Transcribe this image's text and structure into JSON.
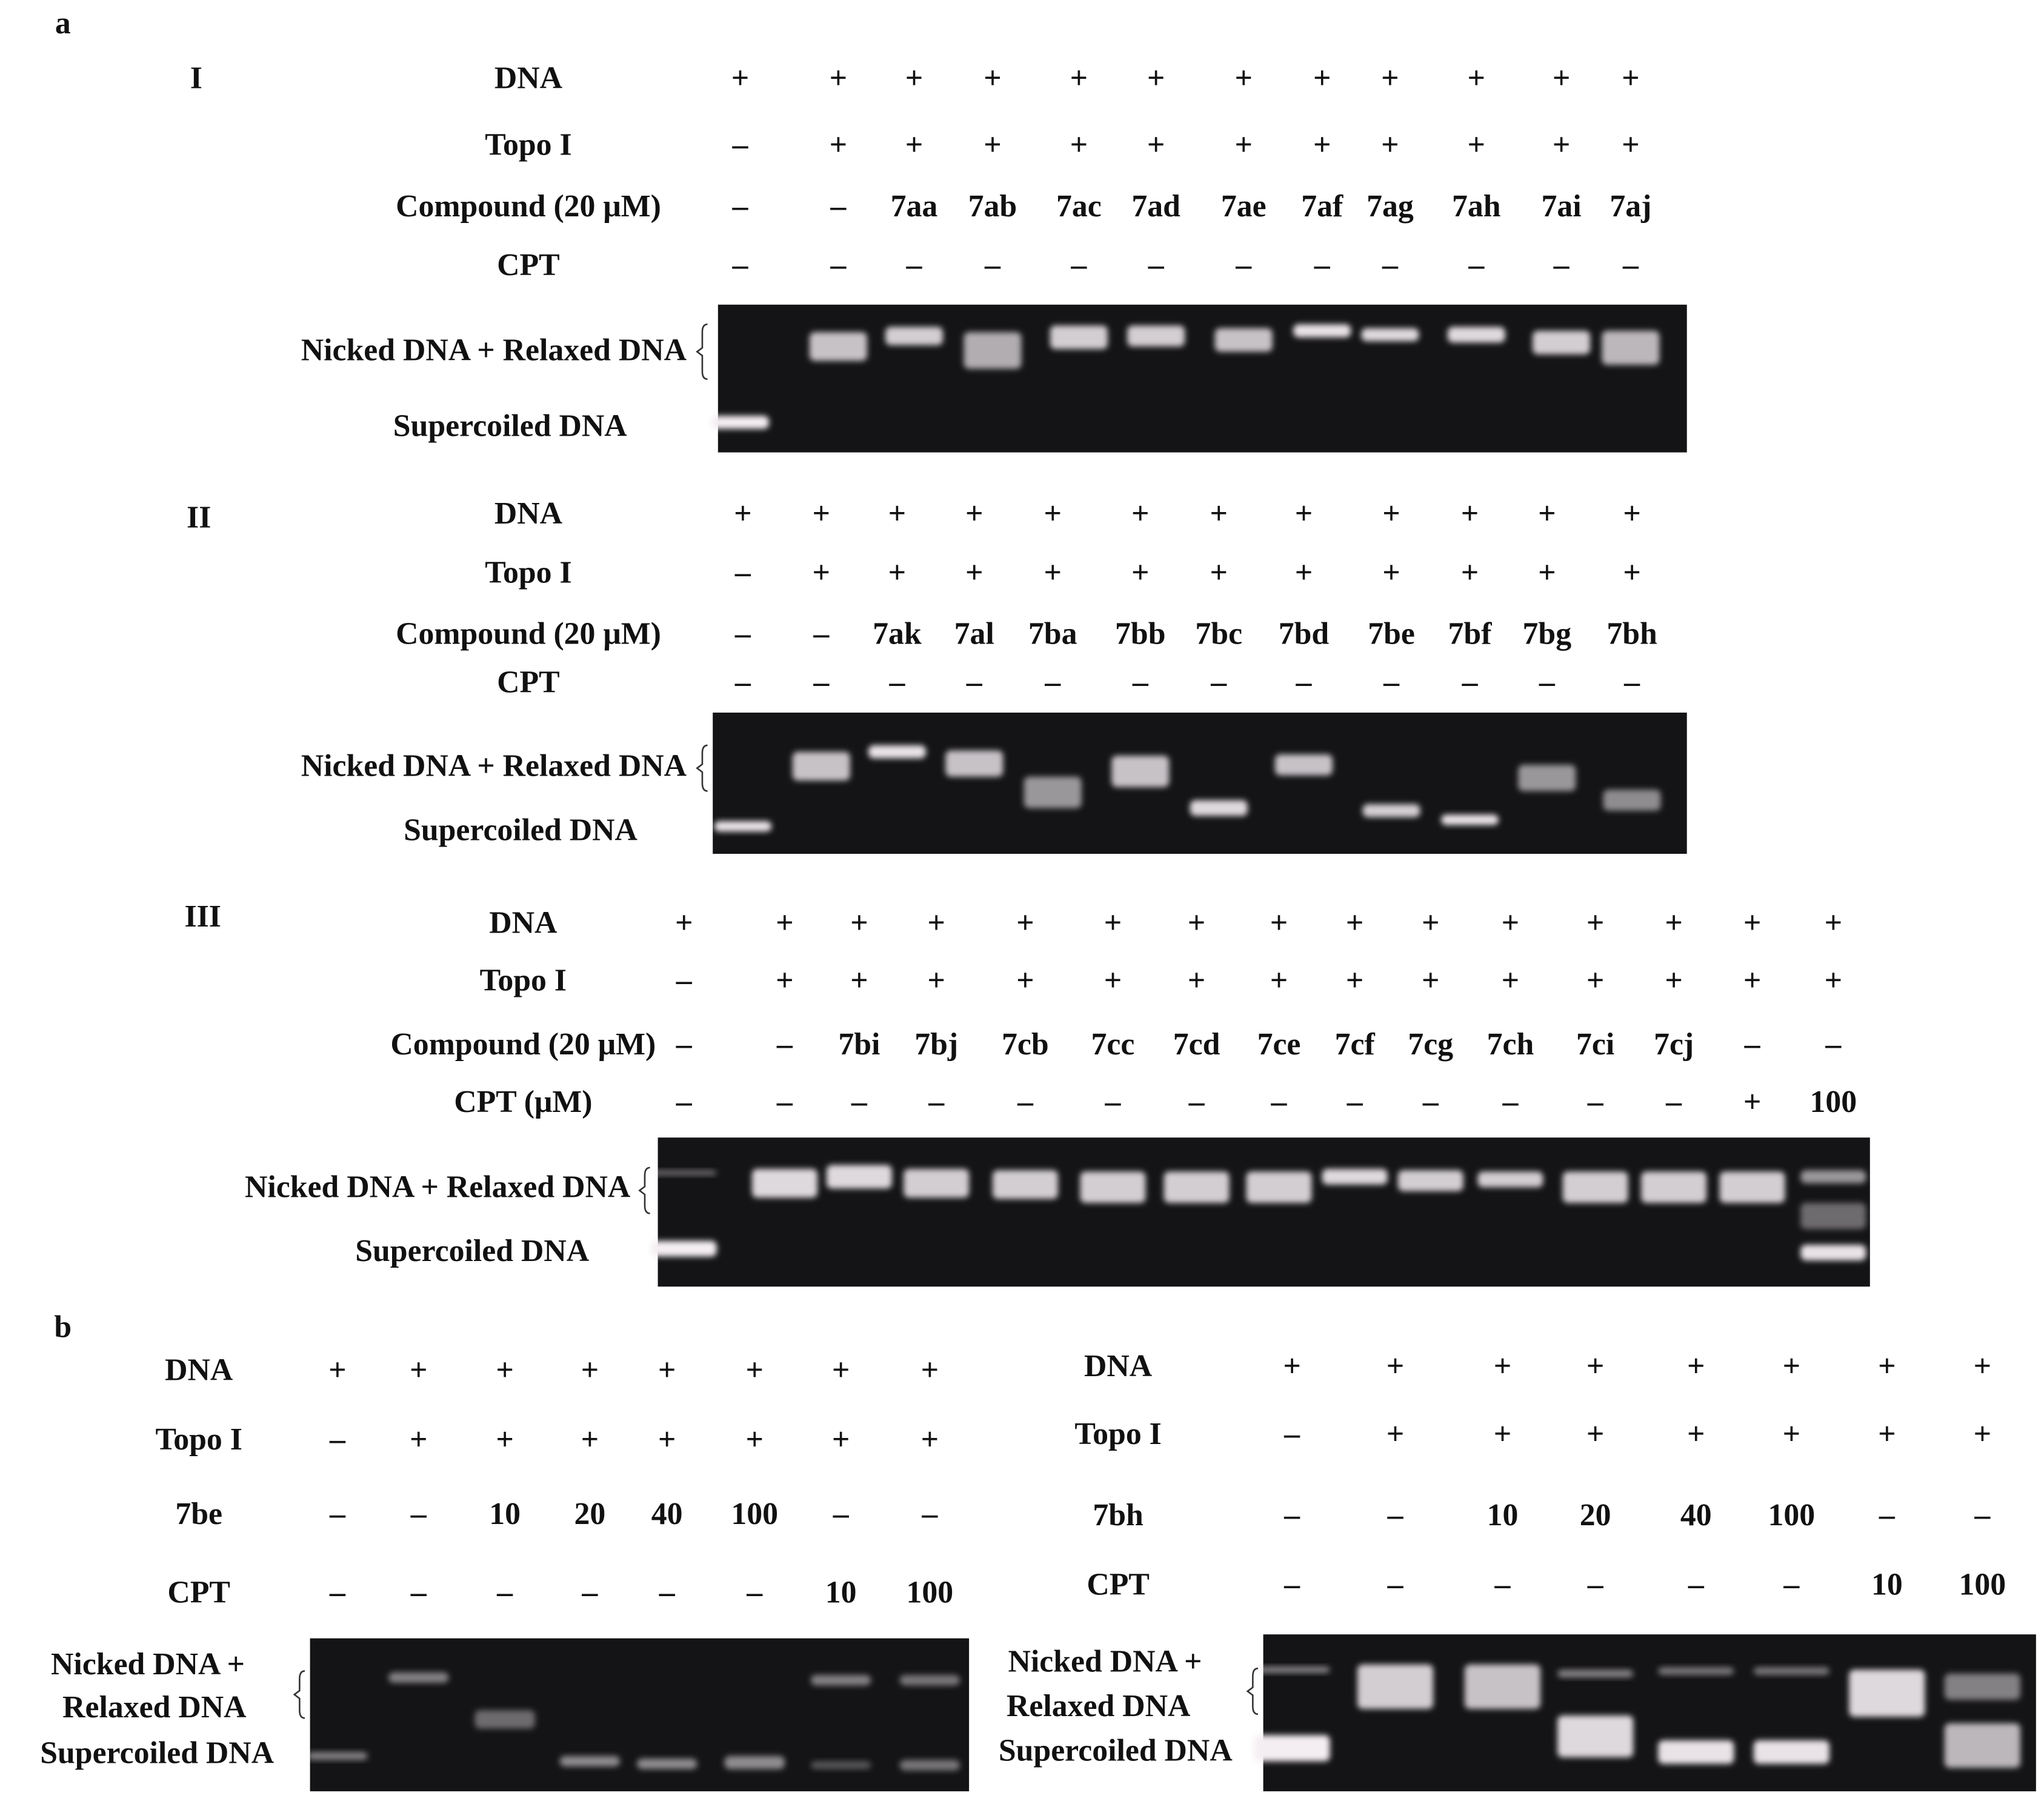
{
  "figure": {
    "panels": [
      {
        "label": "a",
        "sections": [
          {
            "label": "I",
            "rows": [
              {
                "label": "DNA",
                "cells": [
                  "+",
                  "+",
                  "+",
                  "+",
                  "+",
                  "+",
                  "+",
                  "+",
                  "+",
                  "+",
                  "+",
                  "+"
                ]
              },
              {
                "label": "Topo I",
                "cells": [
                  "–",
                  "+",
                  "+",
                  "+",
                  "+",
                  "+",
                  "+",
                  "+",
                  "+",
                  "+",
                  "+",
                  "+"
                ]
              },
              {
                "label": "Compound (20 μM)",
                "cells": [
                  "–",
                  "–",
                  "7aa",
                  "7ab",
                  "7ac",
                  "7ad",
                  "7ae",
                  "7af",
                  "7ag",
                  "7ah",
                  "7ai",
                  "7aj"
                ]
              },
              {
                "label": "CPT",
                "cells": [
                  "–",
                  "–",
                  "–",
                  "–",
                  "–",
                  "–",
                  "–",
                  "–",
                  "–",
                  "–",
                  "–",
                  "–"
                ]
              }
            ],
            "gel_labels": [
              "Nicked DNA + Relaxed DNA",
              "Supercoiled DNA"
            ]
          },
          {
            "label": "II",
            "rows": [
              {
                "label": "DNA",
                "cells": [
                  "+",
                  "+",
                  "+",
                  "+",
                  "+",
                  "+",
                  "+",
                  "+",
                  "+",
                  "+",
                  "+",
                  "+"
                ]
              },
              {
                "label": "Topo I",
                "cells": [
                  "–",
                  "+",
                  "+",
                  "+",
                  "+",
                  "+",
                  "+",
                  "+",
                  "+",
                  "+",
                  "+",
                  "+"
                ]
              },
              {
                "label": "Compound (20 μM)",
                "cells": [
                  "–",
                  "–",
                  "7ak",
                  "7al",
                  "7ba",
                  "7bb",
                  "7bc",
                  "7bd",
                  "7be",
                  "7bf",
                  "7bg",
                  "7bh"
                ]
              },
              {
                "label": "CPT",
                "cells": [
                  "–",
                  "–",
                  "–",
                  "–",
                  "–",
                  "–",
                  "–",
                  "–",
                  "–",
                  "–",
                  "–",
                  "–"
                ]
              }
            ],
            "gel_labels": [
              "Nicked DNA + Relaxed DNA",
              "Supercoiled DNA"
            ]
          },
          {
            "label": "III",
            "rows": [
              {
                "label": "DNA",
                "cells": [
                  "+",
                  "+",
                  "+",
                  "+",
                  "+",
                  "+",
                  "+",
                  "+",
                  "+",
                  "+",
                  "+",
                  "+",
                  "+",
                  "+",
                  "+"
                ]
              },
              {
                "label": "Topo I",
                "cells": [
                  "–",
                  "+",
                  "+",
                  "+",
                  "+",
                  "+",
                  "+",
                  "+",
                  "+",
                  "+",
                  "+",
                  "+",
                  "+",
                  "+",
                  "+"
                ]
              },
              {
                "label": "Compound (20 μM)",
                "cells": [
                  "–",
                  "–",
                  "7bi",
                  "7bj",
                  "7cb",
                  "7cc",
                  "7cd",
                  "7ce",
                  "7cf",
                  "7cg",
                  "7ch",
                  "7ci",
                  "7cj",
                  "–",
                  "–"
                ]
              },
              {
                "label": "CPT (μM)",
                "cells": [
                  "–",
                  "–",
                  "–",
                  "–",
                  "–",
                  "–",
                  "–",
                  "–",
                  "–",
                  "–",
                  "–",
                  "–",
                  "–",
                  "+",
                  "100"
                ]
              }
            ],
            "gel_labels": [
              "Nicked DNA + Relaxed DNA",
              "Supercoiled DNA"
            ]
          }
        ]
      },
      {
        "label": "b",
        "sections": [
          {
            "rows": [
              {
                "label": "DNA",
                "cells": [
                  "+",
                  "+",
                  "+",
                  "+",
                  "+",
                  "+",
                  "+",
                  "+"
                ]
              },
              {
                "label": "Topo I",
                "cells": [
                  "–",
                  "+",
                  "+",
                  "+",
                  "+",
                  "+",
                  "+",
                  "+"
                ]
              },
              {
                "label": "7be",
                "cells": [
                  "–",
                  "–",
                  "10",
                  "20",
                  "40",
                  "100",
                  "–",
                  "–"
                ]
              },
              {
                "label": "CPT",
                "cells": [
                  "–",
                  "–",
                  "–",
                  "–",
                  "–",
                  "–",
                  "10",
                  "100"
                ]
              }
            ],
            "gel_labels": [
              "Nicked DNA +",
              "Relaxed DNA",
              "Supercoiled DNA"
            ]
          },
          {
            "rows": [
              {
                "label": "DNA",
                "cells": [
                  "+",
                  "+",
                  "+",
                  "+",
                  "+",
                  "+",
                  "+",
                  "+"
                ]
              },
              {
                "label": "Topo I",
                "cells": [
                  "–",
                  "+",
                  "+",
                  "+",
                  "+",
                  "+",
                  "+",
                  "+"
                ]
              },
              {
                "label": "7bh",
                "cells": [
                  "–",
                  "–",
                  "10",
                  "20",
                  "40",
                  "100",
                  "–",
                  "–"
                ]
              },
              {
                "label": "CPT",
                "cells": [
                  "–",
                  "–",
                  "–",
                  "–",
                  "–",
                  "–",
                  "10",
                  "100"
                ]
              }
            ],
            "gel_labels": [
              "Nicked DNA +",
              "Relaxed DNA",
              "Supercoiled DNA"
            ]
          }
        ]
      }
    ]
  }
}
